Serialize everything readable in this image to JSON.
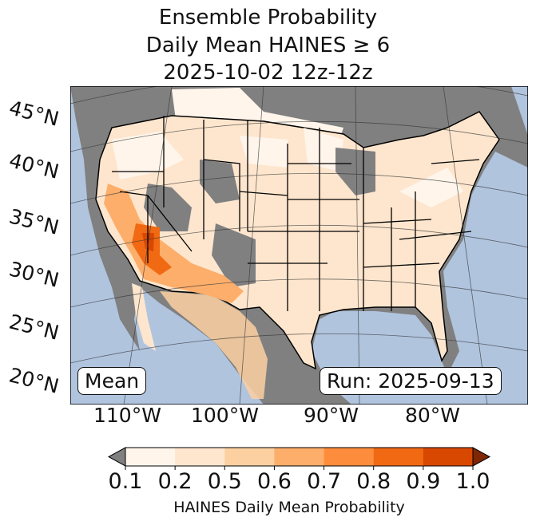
{
  "title": {
    "line1": "Ensemble Probability",
    "line2": "Daily Mean HAINES ≥ 6",
    "line3": "2025-10-02 12z-12z"
  },
  "map": {
    "lat_labels": [
      "45°N",
      "40°N",
      "35°N",
      "30°N",
      "25°N",
      "20°N"
    ],
    "lon_labels": [
      "110°W",
      "100°W",
      "90°W",
      "80°W"
    ],
    "mean_label": "Mean",
    "run_label": "Run: 2025-09-13",
    "colors": {
      "ocean": "#b0c4de",
      "land_below": "#808080",
      "border": "#000000"
    }
  },
  "colorbar": {
    "ticks": [
      "0.1",
      "0.2",
      "0.5",
      "0.6",
      "0.7",
      "0.8",
      "0.9",
      "1.0"
    ],
    "colors": [
      "#fff5eb",
      "#fee6ce",
      "#fdd0a2",
      "#fdae6b",
      "#fd8d3c",
      "#f16913",
      "#d94801"
    ],
    "under_color": "#808080",
    "over_color": "#7f2704",
    "label": "HAINES Daily Mean Probability"
  }
}
